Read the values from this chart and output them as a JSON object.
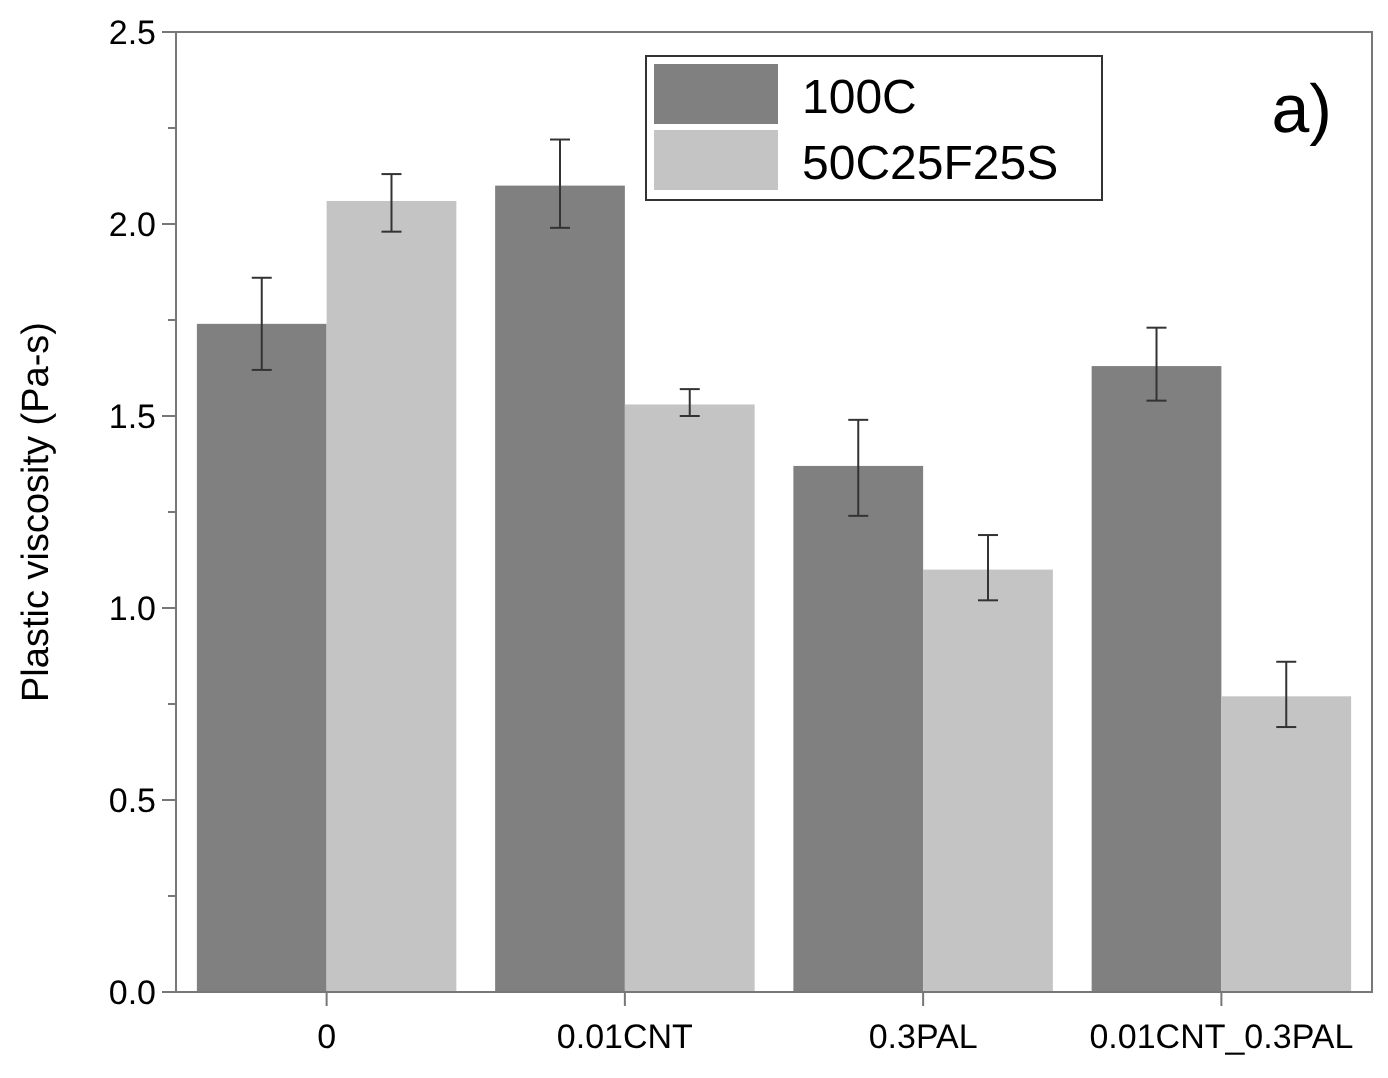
{
  "chart_data": {
    "type": "bar",
    "ylabel": "Plastic viscosity (Pa-s)",
    "annotations": [
      "a)"
    ],
    "categories": [
      "0",
      "0.01CNT",
      "0.3PAL",
      "0.01CNT_0.3PAL"
    ],
    "series": [
      {
        "name": "100C",
        "color": "#808080",
        "values": [
          1.74,
          2.1,
          1.37,
          1.63
        ],
        "errors": [
          [
            1.62,
            1.86
          ],
          [
            1.99,
            2.22
          ],
          [
            1.24,
            1.49
          ],
          [
            1.54,
            1.73
          ]
        ]
      },
      {
        "name": "50C25F25S",
        "color": "#c4c4c4",
        "values": [
          2.06,
          1.53,
          1.1,
          0.77
        ],
        "errors": [
          [
            1.98,
            2.13
          ],
          [
            1.5,
            1.57
          ],
          [
            1.02,
            1.19
          ],
          [
            0.69,
            0.86
          ]
        ]
      }
    ],
    "ylim": [
      0,
      2.5
    ],
    "yticks": [
      {
        "value": 0,
        "label": "0.0"
      },
      {
        "value": 0.25,
        "label": null
      },
      0.5,
      {
        "value": 0.75,
        "label": null
      },
      {
        "value": 1,
        "label": "1.0"
      },
      {
        "value": 1.25,
        "label": null
      },
      1.5,
      {
        "value": 1.75,
        "label": null
      },
      {
        "value": 2,
        "label": "2.0"
      },
      {
        "value": 2.25,
        "label": null
      },
      2.5
    ],
    "legend": "top right",
    "grid": false
  }
}
